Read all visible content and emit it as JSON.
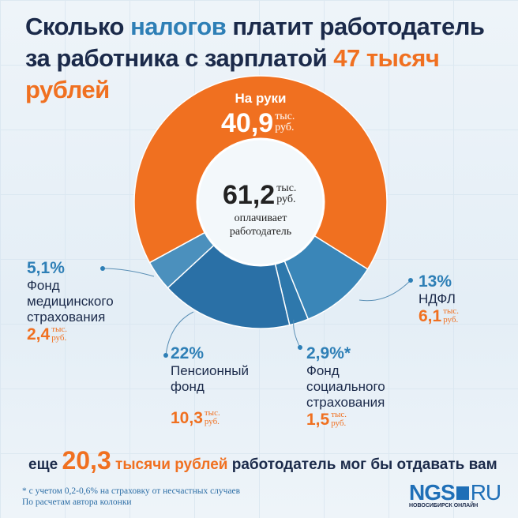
{
  "title": {
    "line1_a": "Сколько ",
    "line1_b": "налогов",
    "line1_c": " платит работодатель",
    "line2_a": "за работника с зарплатой ",
    "line2_b": "47 тысяч рублей"
  },
  "colors": {
    "orange": "#f07020",
    "blue": "#2e7fb6",
    "navy": "#1b2a4a"
  },
  "chart_data": {
    "type": "pie",
    "total": {
      "value": "61,2",
      "unit1": "тыс.",
      "unit2": "руб.",
      "caption1": "оплачивает",
      "caption2": "работодатель"
    },
    "slices": [
      {
        "name": "НДФЛ",
        "percent": "13%",
        "value": 6.1,
        "label": "6,1",
        "color": "#3a86b8"
      },
      {
        "name": "Фонд социального страхования",
        "percent": "2,9%*",
        "value": 1.5,
        "label": "1,5",
        "color": "#2e78ac"
      },
      {
        "name": "Пенсионный фонд",
        "percent": "22%",
        "value": 10.3,
        "label": "10,3",
        "color": "#2a70a6"
      },
      {
        "name": "Фонд медицинского страхования",
        "percent": "5,1%",
        "value": 2.4,
        "label": "2,4",
        "color": "#4b90bd"
      },
      {
        "name": "На руки",
        "percent": "",
        "value": 40.9,
        "label": "40,9",
        "color": "#f07020"
      }
    ],
    "unit1": "тыс.",
    "unit2": "руб."
  },
  "labels": {
    "fms": {
      "pct": "5,1%",
      "n1": "Фонд",
      "n2": "медицинского",
      "n3": "страхования",
      "amt": "2,4"
    },
    "pf": {
      "pct": "22%",
      "n1": "Пенсионный",
      "n2": "фонд",
      "amt": "10,3"
    },
    "fss": {
      "pct": "2,9%*",
      "n1": "Фонд",
      "n2": "социального",
      "n3": "страхования",
      "amt": "1,5"
    },
    "ndfl": {
      "pct": "13%",
      "n1": "НДФЛ",
      "amt": "6,1"
    },
    "hand": {
      "name": "На руки",
      "amt": "40,9"
    }
  },
  "bottom": {
    "a": "еще ",
    "b": "20,3",
    "c": " тысячи рублей",
    "d": " работодатель мог бы отдавать вам"
  },
  "footnote": {
    "l1": "* с учетом 0,2-0,6% на страховку от несчастных случаев",
    "l2": "По расчетам автора колонки"
  },
  "logo": {
    "a": "NGS",
    "b": "RU",
    "sub": "НОВОСИБИРСК ОНЛАЙН"
  }
}
